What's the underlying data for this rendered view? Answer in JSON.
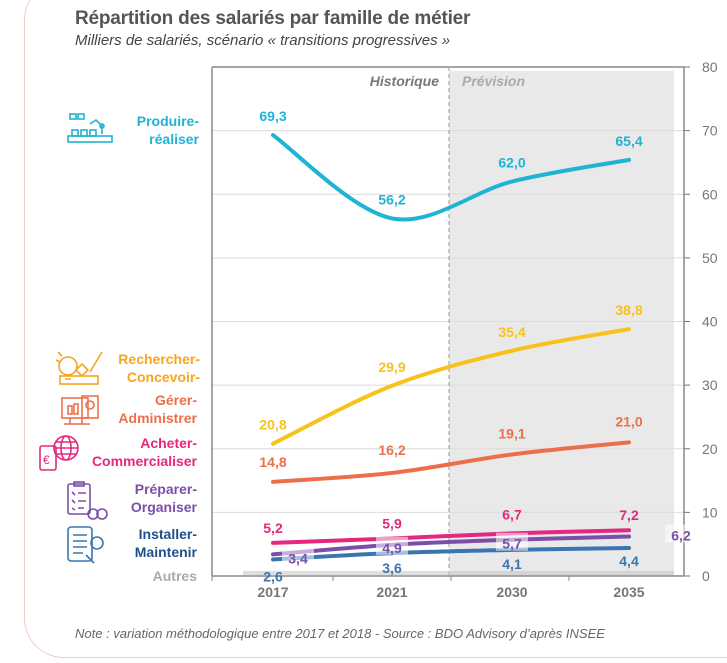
{
  "title": "Répartition des salariés par famille de métier",
  "subtitle": "Milliers de salariés, scénario « transitions progressives »",
  "note": "Note : variation méthodologique entre 2017 et 2018  -  Source : BDO Advisory d’après INSEE",
  "chart_data": {
    "type": "line",
    "title": "Répartition des salariés par famille de métier",
    "subtitle": "Milliers de salariés, scénario « transitions progressives »",
    "categories": [
      "2017",
      "2021",
      "2030",
      "2035"
    ],
    "ylim": [
      0,
      80
    ],
    "yticks": [
      0,
      10,
      20,
      30,
      40,
      50,
      60,
      70,
      80
    ],
    "y_axis_side": "right",
    "grid": true,
    "regions": [
      {
        "label": "Historique",
        "from": "2017",
        "to": "2021"
      },
      {
        "label": "Prévision",
        "from": "2030",
        "to": "2035",
        "shaded": true
      }
    ],
    "series": [
      {
        "name": "Produire-réaliser",
        "color": "#1fb3d4",
        "values": [
          69.3,
          56.2,
          62.0,
          65.4
        ],
        "labels": [
          "69,3",
          "56,2",
          "62,0",
          "65,4"
        ]
      },
      {
        "name": "Rechercher-Concevoir",
        "color": "#f8c21c",
        "values": [
          20.8,
          29.9,
          35.4,
          38.8
        ],
        "labels": [
          "20,8",
          "29,9",
          "35,4",
          "38,8"
        ]
      },
      {
        "name": "Gérer-Administrer",
        "color": "#ec6f4c",
        "values": [
          14.8,
          16.2,
          19.1,
          21.0
        ],
        "labels": [
          "14,8",
          "16,2",
          "19,1",
          "21,0"
        ]
      },
      {
        "name": "Acheter-Commercialiser",
        "color": "#e5277f",
        "values": [
          5.2,
          5.9,
          6.7,
          7.2
        ],
        "labels": [
          "5,2",
          "5,9",
          "6,7",
          "7,2"
        ]
      },
      {
        "name": "Préparer-Organiser",
        "color": "#7b4fa8",
        "values": [
          3.4,
          4.9,
          5.7,
          6.2
        ],
        "labels": [
          "3,4",
          "4,9",
          "5,7",
          "6,2"
        ]
      },
      {
        "name": "Installer-Maintenir",
        "color": "#3a75b0",
        "values": [
          2.6,
          3.6,
          4.1,
          4.4
        ],
        "labels": [
          "2,6",
          "3,6",
          "4,1",
          "4,4"
        ]
      },
      {
        "name": "Autres",
        "color": "#c8c8c8",
        "values": [
          0.5,
          0.5,
          0.5,
          0.5
        ],
        "labels": []
      }
    ]
  },
  "legend": [
    {
      "line1": "Produire-",
      "line2": "réaliser",
      "icon": "factory-robot-icon",
      "color": "#1fb3d4"
    },
    {
      "line1": "Rechercher-",
      "line2": "Concevoir-",
      "icon": "lightbulb-design-icon",
      "color": "#f8a51c"
    },
    {
      "line1": "Gérer-",
      "line2": "Administrer",
      "icon": "monitor-chart-icon",
      "color": "#ec6f4c"
    },
    {
      "line1": "Acheter-",
      "line2": "Commercialiser",
      "icon": "tablet-globe-euro-icon",
      "color": "#e5277f"
    },
    {
      "line1": "Préparer-",
      "line2": "Organiser",
      "icon": "checklist-gears-icon",
      "color": "#7b4fa8"
    },
    {
      "line1": "Installer-",
      "line2": "Maintenir",
      "icon": "tablet-tools-icon",
      "color": "#1e4f8c"
    },
    {
      "line1": "Autres",
      "line2": "",
      "icon": "",
      "color": "#aaaaaa"
    }
  ]
}
